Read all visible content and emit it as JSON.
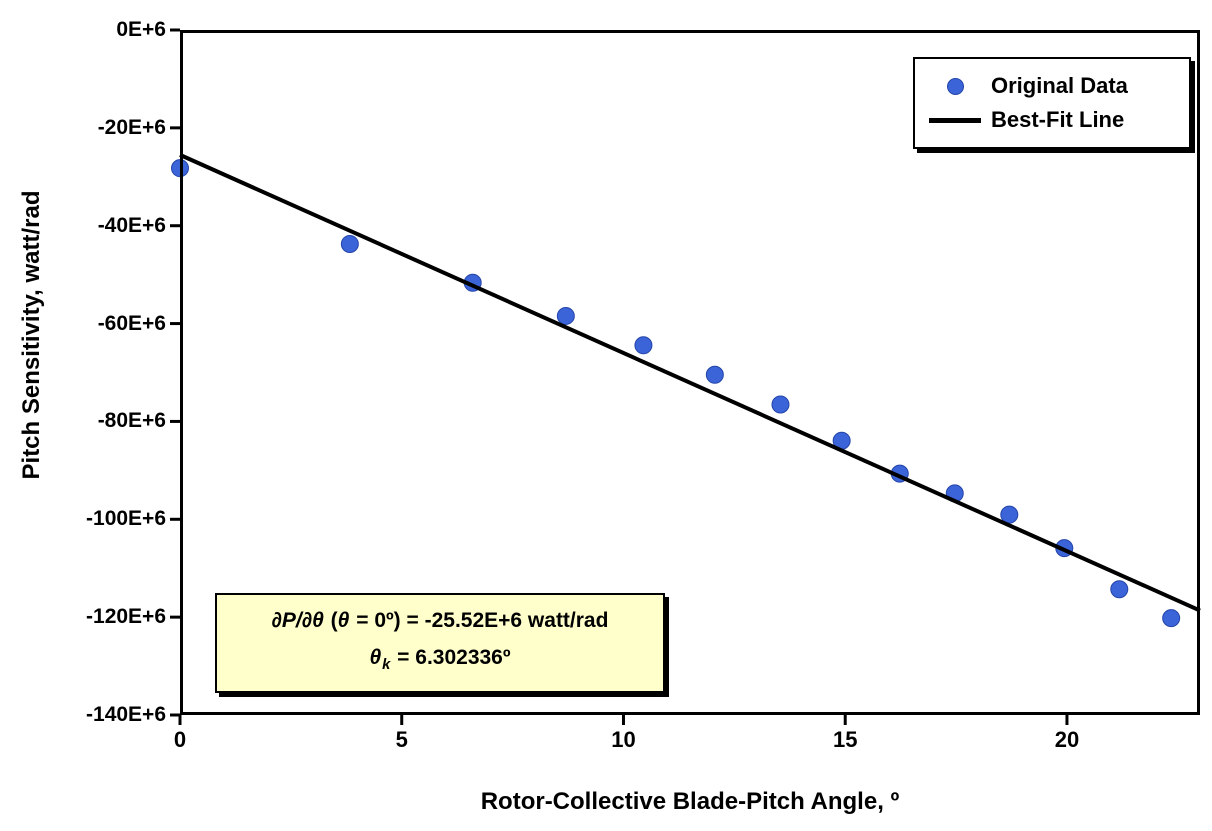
{
  "chart_data": {
    "type": "scatter",
    "title": "",
    "xlabel": "Rotor-Collective Blade-Pitch Angle, º",
    "ylabel": "Pitch Sensitivity, watt/rad",
    "xlim": [
      0,
      23
    ],
    "ylim_e6": [
      -140,
      0
    ],
    "y_unit": "E+6 watt/rad",
    "grid": false,
    "legend_position": "top-right",
    "x_ticks": [
      {
        "value": 0,
        "label": "0"
      },
      {
        "value": 5,
        "label": "5"
      },
      {
        "value": 10,
        "label": "10"
      },
      {
        "value": 15,
        "label": "15"
      },
      {
        "value": 20,
        "label": "20"
      }
    ],
    "y_ticks": [
      {
        "value": 0,
        "label": "0E+6"
      },
      {
        "value": -20,
        "label": "-20E+6"
      },
      {
        "value": -40,
        "label": "-40E+6"
      },
      {
        "value": -60,
        "label": "-60E+6"
      },
      {
        "value": -80,
        "label": "-80E+6"
      },
      {
        "value": -100,
        "label": "-100E+6"
      },
      {
        "value": -120,
        "label": "-120E+6"
      },
      {
        "value": -140,
        "label": "-140E+6"
      }
    ],
    "series": [
      {
        "name": "Original Data",
        "type": "scatter",
        "color": "#3B64D9",
        "edge_color": "#2445A8",
        "x": [
          0.0,
          3.83,
          6.6,
          8.7,
          10.45,
          12.06,
          13.54,
          14.92,
          16.23,
          17.47,
          18.7,
          19.94,
          21.18,
          22.35
        ],
        "y_e6": [
          -28.24,
          -43.73,
          -51.66,
          -58.44,
          -64.44,
          -70.46,
          -76.53,
          -83.94,
          -90.67,
          -94.71,
          -99.04,
          -105.9,
          -114.3,
          -120.2
        ]
      },
      {
        "name": "Best-Fit Line",
        "type": "line",
        "color": "#000000",
        "x": [
          0,
          23
        ],
        "y_e6": [
          -25.52,
          -118.66
        ]
      }
    ],
    "annotation": {
      "bg_color": "#FFFFCC",
      "lines": [
        [
          {
            "text": "∂P/∂θ",
            "italic": true
          },
          {
            "text": " (",
            "italic": false
          },
          {
            "text": "θ",
            "italic": true
          },
          {
            "text": " = 0º) = -25.52E+6 watt/rad",
            "italic": false
          }
        ],
        [
          {
            "text": "θ",
            "italic": true
          },
          {
            "text": "k",
            "italic": true,
            "sub": true
          },
          {
            "text": " = 6.302336º",
            "italic": false
          }
        ]
      ]
    }
  }
}
